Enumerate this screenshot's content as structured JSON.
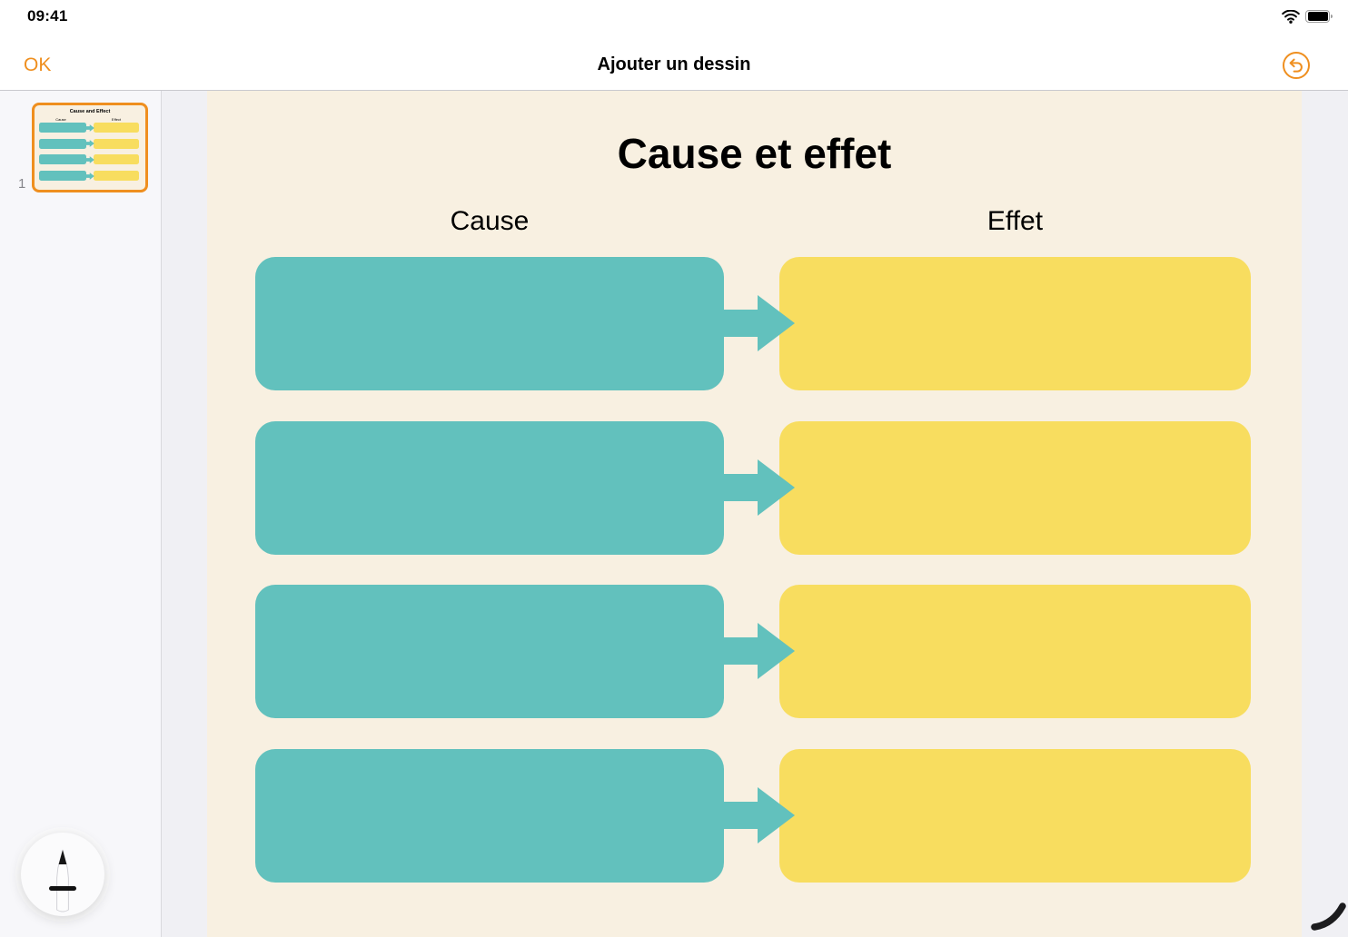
{
  "status_bar": {
    "time": "09:41"
  },
  "nav_bar": {
    "done_label": "OK",
    "title": "Ajouter un dessin"
  },
  "sidebar": {
    "page_number": "1",
    "thumbnail": {
      "title": "Cause and Effect",
      "column_left": "Cause",
      "column_right": "Effect",
      "row_count": 4
    }
  },
  "canvas": {
    "title": "Cause et effet",
    "columns": [
      {
        "label": "Cause"
      },
      {
        "label": "Effet"
      }
    ],
    "row_count": 4
  },
  "colors": {
    "accent": "#EF8F1F",
    "teal": "#62C1BD",
    "yellow": "#F8DD5F",
    "canvas_bg": "#F8F0E1"
  }
}
